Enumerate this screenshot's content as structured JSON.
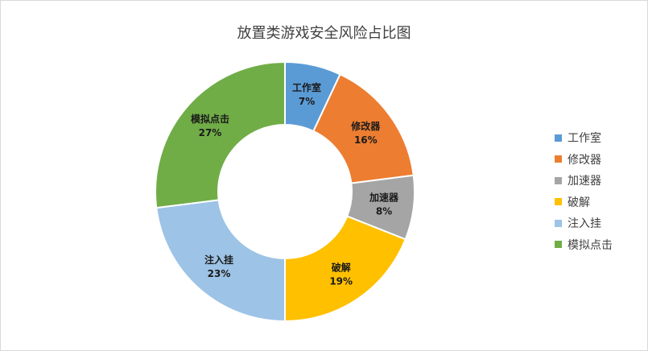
{
  "chart_data": {
    "type": "pie",
    "title": "放置类游戏安全风险占比图",
    "hole": true,
    "legend_position": "right",
    "slices": [
      {
        "label": "工作室",
        "value": 7,
        "value_label": "7%",
        "color": "#5b9bd5"
      },
      {
        "label": "修改器",
        "value": 16,
        "value_label": "16%",
        "color": "#ed7d31"
      },
      {
        "label": "加速器",
        "value": 8,
        "value_label": "8%",
        "color": "#a5a5a5"
      },
      {
        "label": "破解",
        "value": 19,
        "value_label": "19%",
        "color": "#ffc000"
      },
      {
        "label": "注入挂",
        "value": 23,
        "value_label": "23%",
        "color": "#9dc3e6"
      },
      {
        "label": "模拟点击",
        "value": 27,
        "value_label": "27%",
        "color": "#70ad47"
      }
    ]
  }
}
